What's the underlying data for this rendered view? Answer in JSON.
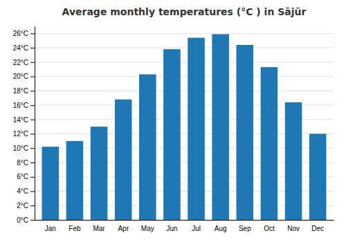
{
  "chart_data": {
    "type": "bar",
    "title": "Average monthly temperatures (°C ) in Sājūr",
    "categories": [
      "Jan",
      "Feb",
      "Mar",
      "Apr",
      "May",
      "Jun",
      "Jul",
      "Aug",
      "Sep",
      "Oct",
      "Nov",
      "Dec"
    ],
    "values": [
      10.2,
      11.0,
      13.0,
      16.8,
      20.3,
      23.8,
      25.4,
      25.9,
      24.4,
      21.3,
      16.4,
      12.0
    ],
    "ylim": [
      0,
      27
    ],
    "yticks": [
      {
        "value": 0,
        "label": "0°C"
      },
      {
        "value": 2,
        "label": "2°C"
      },
      {
        "value": 4,
        "label": "4°C"
      },
      {
        "value": 6,
        "label": "6°C"
      },
      {
        "value": 8,
        "label": "8°C"
      },
      {
        "value": 10,
        "label": "10°C"
      },
      {
        "value": 12,
        "label": "12°C"
      },
      {
        "value": 14,
        "label": "14°C"
      },
      {
        "value": 16,
        "label": "16°C"
      },
      {
        "value": 18,
        "label": "18°C"
      },
      {
        "value": 20,
        "label": "20°C"
      },
      {
        "value": 22,
        "label": "22°C"
      },
      {
        "value": 24,
        "label": "24°C"
      },
      {
        "value": 26,
        "label": "26°C"
      }
    ],
    "grid": true
  }
}
